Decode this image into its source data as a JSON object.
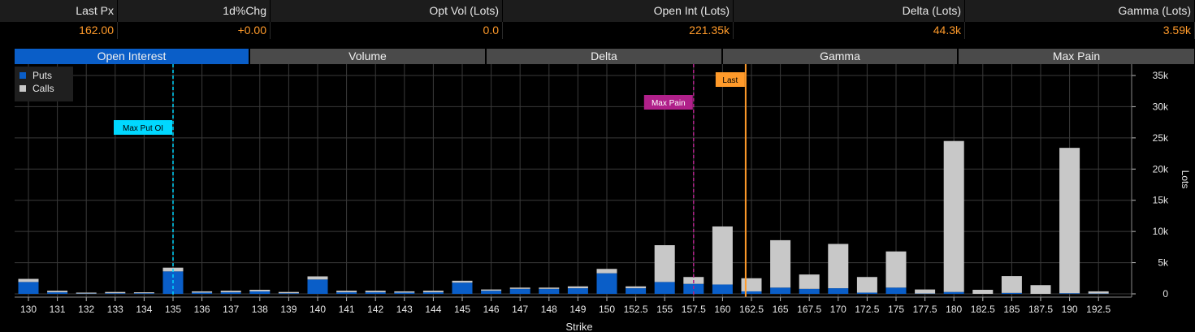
{
  "stats": [
    {
      "label": "Last Px",
      "value": "162.00"
    },
    {
      "label": "1d%Chg",
      "value": "+0.00"
    },
    {
      "label": "Opt Vol (Lots)",
      "value": "0.0"
    },
    {
      "label": "Open Int (Lots)",
      "value": "221.35k"
    },
    {
      "label": "Delta (Lots)",
      "value": "44.3k"
    },
    {
      "label": "Gamma (Lots)",
      "value": "3.59k"
    }
  ],
  "tabs": [
    {
      "label": "Open Interest",
      "active": true
    },
    {
      "label": "Volume",
      "active": false
    },
    {
      "label": "Delta",
      "active": false
    },
    {
      "label": "Gamma",
      "active": false
    },
    {
      "label": "Max Pain",
      "active": false
    }
  ],
  "chart_data": {
    "type": "bar",
    "stacked": true,
    "xlabel": "Strike",
    "ylabel": "Lots",
    "ylim": [
      0,
      36000
    ],
    "yticks": [
      0,
      5000,
      10000,
      15000,
      20000,
      25000,
      30000,
      35000
    ],
    "ytick_labels": [
      "0",
      "5k",
      "10k",
      "15k",
      "20k",
      "25k",
      "30k",
      "35k"
    ],
    "grid": true,
    "legend_position": "top-left",
    "categories": [
      "130",
      "131",
      "132",
      "133",
      "134",
      "135",
      "136",
      "137",
      "138",
      "139",
      "140",
      "141",
      "142",
      "143",
      "144",
      "145",
      "146",
      "147",
      "148",
      "149",
      "150",
      "152.5",
      "155",
      "157.5",
      "160",
      "162.5",
      "165",
      "167.5",
      "170",
      "172.5",
      "175",
      "177.5",
      "180",
      "182.5",
      "185",
      "187.5",
      "190",
      "192.5"
    ],
    "series": [
      {
        "name": "Puts",
        "color": "#0a5ec8",
        "values": [
          1900,
          250,
          50,
          100,
          100,
          3600,
          200,
          250,
          400,
          100,
          2300,
          250,
          250,
          200,
          250,
          1800,
          500,
          800,
          800,
          900,
          3300,
          900,
          1900,
          1600,
          1500,
          400,
          1000,
          800,
          900,
          200,
          1000,
          50,
          300,
          0,
          150,
          0,
          100,
          50
        ]
      },
      {
        "name": "Calls",
        "color": "#c8c8c8",
        "values": [
          500,
          250,
          150,
          200,
          150,
          600,
          200,
          250,
          250,
          200,
          500,
          250,
          250,
          200,
          250,
          300,
          200,
          200,
          200,
          300,
          700,
          300,
          5900,
          1100,
          9300,
          2100,
          7600,
          2300,
          7100,
          2500,
          5800,
          650,
          24200,
          650,
          2700,
          1400,
          23300,
          350
        ]
      }
    ],
    "markers": [
      {
        "label": "Max Put OI",
        "strike": "135",
        "color": "#00d8ff",
        "style": "dashed"
      },
      {
        "label": "Max Pain",
        "strike": "157.5",
        "color": "#b0208a",
        "style": "dashed"
      },
      {
        "label": "Last",
        "value": 162.0,
        "color": "#ff9a2a",
        "style": "solid"
      }
    ]
  }
}
